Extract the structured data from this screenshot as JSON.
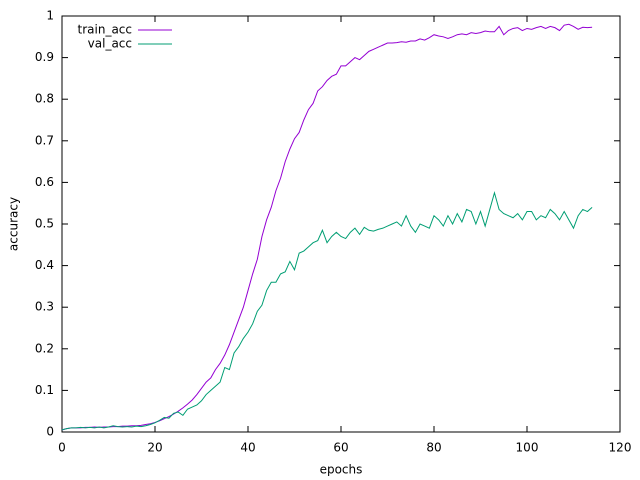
{
  "chart_data": {
    "type": "line",
    "xlabel": "epochs",
    "ylabel": "accuracy",
    "x": [
      0,
      1,
      2,
      3,
      4,
      5,
      6,
      7,
      8,
      9,
      10,
      11,
      12,
      13,
      14,
      15,
      16,
      17,
      18,
      19,
      20,
      21,
      22,
      23,
      24,
      25,
      26,
      27,
      28,
      29,
      30,
      31,
      32,
      33,
      34,
      35,
      36,
      37,
      38,
      39,
      40,
      41,
      42,
      43,
      44,
      45,
      46,
      47,
      48,
      49,
      50,
      51,
      52,
      53,
      54,
      55,
      56,
      57,
      58,
      59,
      60,
      61,
      62,
      63,
      64,
      65,
      66,
      67,
      68,
      69,
      70,
      71,
      72,
      73,
      74,
      75,
      76,
      77,
      78,
      79,
      80,
      81,
      82,
      83,
      84,
      85,
      86,
      87,
      88,
      89,
      90,
      91,
      92,
      93,
      94,
      95,
      96,
      97,
      98,
      99,
      100,
      101,
      102,
      103,
      104,
      105,
      106,
      107,
      108,
      109,
      110,
      111,
      112,
      113,
      114
    ],
    "series": [
      {
        "name": "train_acc",
        "color": "#9400d3",
        "values": [
          0.005,
          0.008,
          0.01,
          0.01,
          0.01,
          0.011,
          0.011,
          0.012,
          0.011,
          0.012,
          0.012,
          0.013,
          0.013,
          0.014,
          0.014,
          0.015,
          0.015,
          0.016,
          0.018,
          0.02,
          0.023,
          0.027,
          0.032,
          0.037,
          0.043,
          0.05,
          0.058,
          0.067,
          0.077,
          0.09,
          0.105,
          0.12,
          0.13,
          0.15,
          0.165,
          0.185,
          0.21,
          0.24,
          0.27,
          0.3,
          0.34,
          0.38,
          0.415,
          0.47,
          0.51,
          0.54,
          0.58,
          0.61,
          0.65,
          0.68,
          0.705,
          0.72,
          0.75,
          0.775,
          0.79,
          0.82,
          0.83,
          0.845,
          0.855,
          0.86,
          0.88,
          0.88,
          0.89,
          0.9,
          0.895,
          0.905,
          0.915,
          0.92,
          0.925,
          0.93,
          0.935,
          0.935,
          0.936,
          0.938,
          0.937,
          0.94,
          0.94,
          0.945,
          0.942,
          0.948,
          0.955,
          0.952,
          0.95,
          0.946,
          0.95,
          0.955,
          0.957,
          0.955,
          0.96,
          0.958,
          0.96,
          0.964,
          0.962,
          0.962,
          0.975,
          0.955,
          0.965,
          0.97,
          0.972,
          0.965,
          0.97,
          0.968,
          0.972,
          0.975,
          0.97,
          0.975,
          0.972,
          0.965,
          0.978,
          0.98,
          0.975,
          0.968,
          0.973,
          0.972,
          0.973
        ]
      },
      {
        "name": "val_acc",
        "color": "#009e73",
        "values": [
          0.005,
          0.008,
          0.01,
          0.01,
          0.011,
          0.01,
          0.011,
          0.01,
          0.012,
          0.01,
          0.012,
          0.015,
          0.013,
          0.012,
          0.013,
          0.012,
          0.014,
          0.013,
          0.015,
          0.018,
          0.022,
          0.028,
          0.035,
          0.033,
          0.045,
          0.048,
          0.04,
          0.055,
          0.06,
          0.065,
          0.075,
          0.09,
          0.1,
          0.11,
          0.12,
          0.155,
          0.15,
          0.19,
          0.205,
          0.225,
          0.24,
          0.26,
          0.29,
          0.305,
          0.34,
          0.36,
          0.36,
          0.38,
          0.385,
          0.41,
          0.39,
          0.43,
          0.435,
          0.445,
          0.455,
          0.46,
          0.485,
          0.455,
          0.47,
          0.48,
          0.47,
          0.465,
          0.48,
          0.49,
          0.475,
          0.492,
          0.485,
          0.483,
          0.487,
          0.49,
          0.495,
          0.5,
          0.505,
          0.495,
          0.52,
          0.495,
          0.48,
          0.5,
          0.495,
          0.49,
          0.52,
          0.51,
          0.495,
          0.52,
          0.5,
          0.525,
          0.505,
          0.535,
          0.53,
          0.5,
          0.53,
          0.495,
          0.535,
          0.575,
          0.535,
          0.525,
          0.52,
          0.515,
          0.525,
          0.51,
          0.53,
          0.53,
          0.51,
          0.52,
          0.515,
          0.535,
          0.525,
          0.51,
          0.53,
          0.51,
          0.49,
          0.52,
          0.535,
          0.53,
          0.54
        ]
      }
    ],
    "xlim": [
      0,
      120
    ],
    "xticks": [
      0,
      20,
      40,
      60,
      80,
      100,
      120
    ],
    "ylim": [
      0,
      1
    ],
    "yticks": [
      0,
      0.1,
      0.2,
      0.3,
      0.4,
      0.5,
      0.6,
      0.7,
      0.8,
      0.9,
      1
    ],
    "legend": "top-left"
  }
}
